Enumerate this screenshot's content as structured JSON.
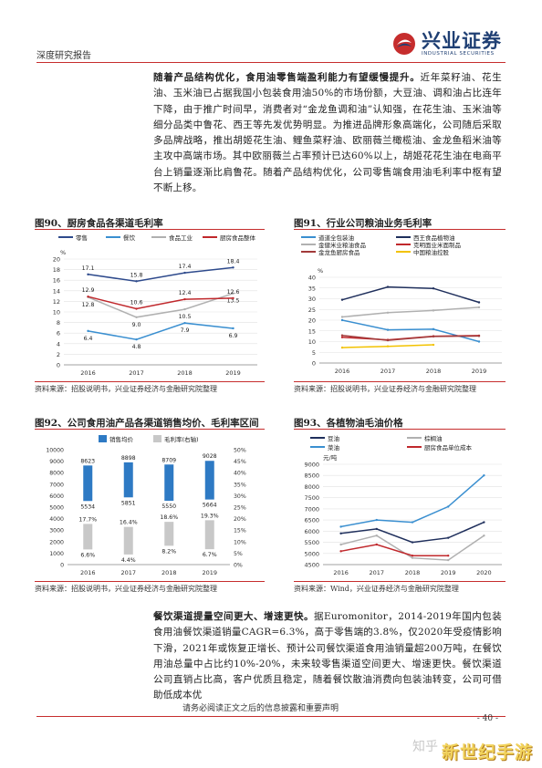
{
  "header": {
    "report_type": "深度研究报告",
    "company_name": "兴业证券",
    "company_sub": "INDUSTRIAL SECURITIES"
  },
  "paragraphs": {
    "p1_bold": "随着产品结构优化，食用油零售端盈利能力有望缓慢提升。",
    "p1_text": "近年菜籽油、花生油、玉米油已占据我国小包装食用油50%的市场份额，大豆油、调和油占比连年下降，由于推广时间早，消费者对“金龙鱼调和油”认知强，在花生油、玉米油等细分品类中鲁花、西王等先发优势明显。为推进品牌形象高端化，公司随后采取多品牌战略，推出胡姬花生油、鲤鱼菜籽油、欧丽薇兰橄榄油、金龙鱼稻米油等主攻中高端市场。其中欧丽薇兰占率预计已达60%以上，胡姬花花生油在电商平台上销量逐渐比肩鲁花。随着产品结构优化，公司零售端食用油毛利率中枢有望不断上移。",
    "p2_bold": "餐饮渠道提量空间更大、增速更快。",
    "p2_text": "据Euromonitor，2014-2019年国内包装食用油餐饮渠道销量CAGR=6.3%，高于零售端的3.8%，仅2020年受疫情影响下滑，2021年或恢复正增长、预计公司餐饮渠道食用油销量超200万吨，在餐饮用油总量中占比约10%-20%，未来较零售渠道空间更大、增速更快。餐饮渠道公司直销占比高，客户优质且稳定，随着餐饮散油消费向包装油转变，公司可借助低成本优"
  },
  "figures": {
    "f90": {
      "title": "图90、厨房食品各渠道毛利率",
      "source": "资料来源：招股说明书，兴业证券经济与金融研究院整理"
    },
    "f91": {
      "title": "图91、行业公司粮油业务毛利率",
      "source": "资料来源：招股说明书，兴业证券经济与金融研究院整理"
    },
    "f92": {
      "title": "图92、公司食用油产品各渠道销售均价、毛利率区间",
      "source": "资料来源：招股说明书，兴业证券经济与金融研究院整理"
    },
    "f93": {
      "title": "图93、各植物油毛油价格",
      "source": "资料来源：Wind，兴业证券经济与金融研究院整理"
    }
  },
  "chart_data": [
    {
      "id": "f90",
      "type": "line",
      "title": "图90、厨房食品各渠道毛利率",
      "ylabel": "%",
      "x": [
        "2016",
        "2017",
        "2018",
        "2019"
      ],
      "ylim": [
        0,
        20
      ],
      "yticks": [
        "0",
        "2",
        "4",
        "6",
        "8",
        "10",
        "12",
        "14",
        "16",
        "18",
        "20"
      ],
      "legend_position": "top",
      "series": [
        {
          "name": "零售",
          "color": "#2e4a8c",
          "values": [
            17.1,
            15.8,
            17.4,
            18.4
          ],
          "labels": [
            "17.1",
            "15.8",
            "17.4",
            "18.4"
          ]
        },
        {
          "name": "餐饮",
          "color": "#3a8fd0",
          "values": [
            6.4,
            4.8,
            7.9,
            6.9
          ],
          "labels": [
            "6.4",
            "4.8",
            "7.9",
            "6.9"
          ]
        },
        {
          "name": "食品工业",
          "color": "#b0b0b0",
          "values": [
            12.8,
            9.0,
            10.5,
            13.5
          ],
          "labels": [
            "12.8",
            "9.0",
            "10.5",
            "13.5"
          ]
        },
        {
          "name": "厨房食品整体",
          "color": "#c0282c",
          "values": [
            12.9,
            10.6,
            12.4,
            12.6
          ],
          "labels": [
            "12.9",
            "10.6",
            "12.4",
            "12.6"
          ]
        }
      ]
    },
    {
      "id": "f91",
      "type": "line",
      "title": "图91、行业公司粮油业务毛利率",
      "ylabel": "%",
      "x": [
        "2016",
        "2017",
        "2018",
        "2019"
      ],
      "ylim": [
        0,
        40
      ],
      "yticks": [
        "0",
        "5",
        "10",
        "15",
        "20",
        "25",
        "30",
        "35",
        "40"
      ],
      "legend_position": "top",
      "series": [
        {
          "name": "道道全包装油",
          "color": "#3a8fd0",
          "values": [
            20,
            15.5,
            15.8,
            10
          ]
        },
        {
          "name": "西王食品植物油",
          "color": "#1f2f5c",
          "values": [
            29.5,
            35.5,
            34.8,
            28.3
          ]
        },
        {
          "name": "金健米业粮油食品",
          "color": "#b0b0b0",
          "values": [
            21.5,
            23.5,
            24.5,
            26
          ]
        },
        {
          "name": "克明面业米面制品",
          "color": "#c0282c",
          "values": [
            12,
            10.8,
            12.5,
            12.8
          ]
        },
        {
          "name": "金龙鱼厨房食品",
          "color": "#a23a3a",
          "values": [
            12.9,
            10.6,
            12.4,
            12.6
          ]
        },
        {
          "name": "中国粮油控股",
          "color": "#f2c200",
          "values": [
            7.2,
            7.8,
            8.5,
            null
          ]
        }
      ]
    },
    {
      "id": "f92",
      "type": "bar",
      "title": "图92、公司食用油产品各渠道销售均价、毛利率区间",
      "categories": [
        "2016",
        "2017",
        "2018",
        "2019"
      ],
      "legend_position": "top",
      "left_axis": {
        "ylim": [
          0,
          10000
        ],
        "yticks": [
          "0",
          "1000",
          "2000",
          "3000",
          "4000",
          "5000",
          "6000",
          "7000",
          "8000",
          "9000",
          "10000"
        ]
      },
      "right_axis": {
        "ylim": [
          0,
          50
        ],
        "yticks": [
          "0%",
          "5%",
          "10%",
          "15%",
          "20%",
          "25%",
          "30%",
          "35%",
          "40%",
          "45%",
          "50%"
        ]
      },
      "series": [
        {
          "name": "销售均价",
          "color": "#2e7ac4",
          "axis": "left",
          "low": [
            5534,
            5851,
            5550,
            5664
          ],
          "high": [
            8623,
            8898,
            8709,
            9028
          ],
          "low_labels": [
            "5534",
            "5851",
            "5550",
            "5664"
          ],
          "high_labels": [
            "8623",
            "8898",
            "8709",
            "9028"
          ]
        },
        {
          "name": "毛利率(右轴)",
          "color": "#c8c8c8",
          "axis": "right",
          "low": [
            6.6,
            4.4,
            8.2,
            6.7
          ],
          "high": [
            17.7,
            16.4,
            18.6,
            19.3
          ],
          "low_labels": [
            "6.6%",
            "4.4%",
            "8.2%",
            "6.7%"
          ],
          "high_labels": [
            "17.7%",
            "16.4%",
            "18.6%",
            "19.3%"
          ]
        }
      ]
    },
    {
      "id": "f93",
      "type": "line",
      "title": "图93、各植物油毛油价格",
      "ylabel": "元/吨",
      "x": [
        "2016",
        "2017",
        "2018",
        "2019",
        "2020"
      ],
      "ylim": [
        4500,
        9000
      ],
      "yticks": [
        "4500",
        "5000",
        "5500",
        "6000",
        "6500",
        "7000",
        "7500",
        "8000",
        "8500",
        "9000"
      ],
      "legend_position": "top",
      "series": [
        {
          "name": "豆油",
          "color": "#1f2f5c",
          "values": [
            5900,
            6100,
            5500,
            5700,
            6400
          ]
        },
        {
          "name": "棕榈油",
          "color": "#b0b0b0",
          "values": [
            5400,
            5800,
            4800,
            4700,
            5800
          ]
        },
        {
          "name": "菜油",
          "color": "#3a8fd0",
          "values": [
            6200,
            6500,
            6400,
            7100,
            8500
          ]
        },
        {
          "name": "厨房食品单位成本",
          "color": "#c0282c",
          "values": [
            5100,
            5400,
            4900,
            4900,
            null
          ]
        }
      ]
    }
  ],
  "footer": {
    "disclaimer": "请务必阅读正文之后的信息披露和重要声明",
    "page": "- 40 -",
    "watermark_zhihu": "知乎",
    "watermark_site": "新世纪手游"
  }
}
